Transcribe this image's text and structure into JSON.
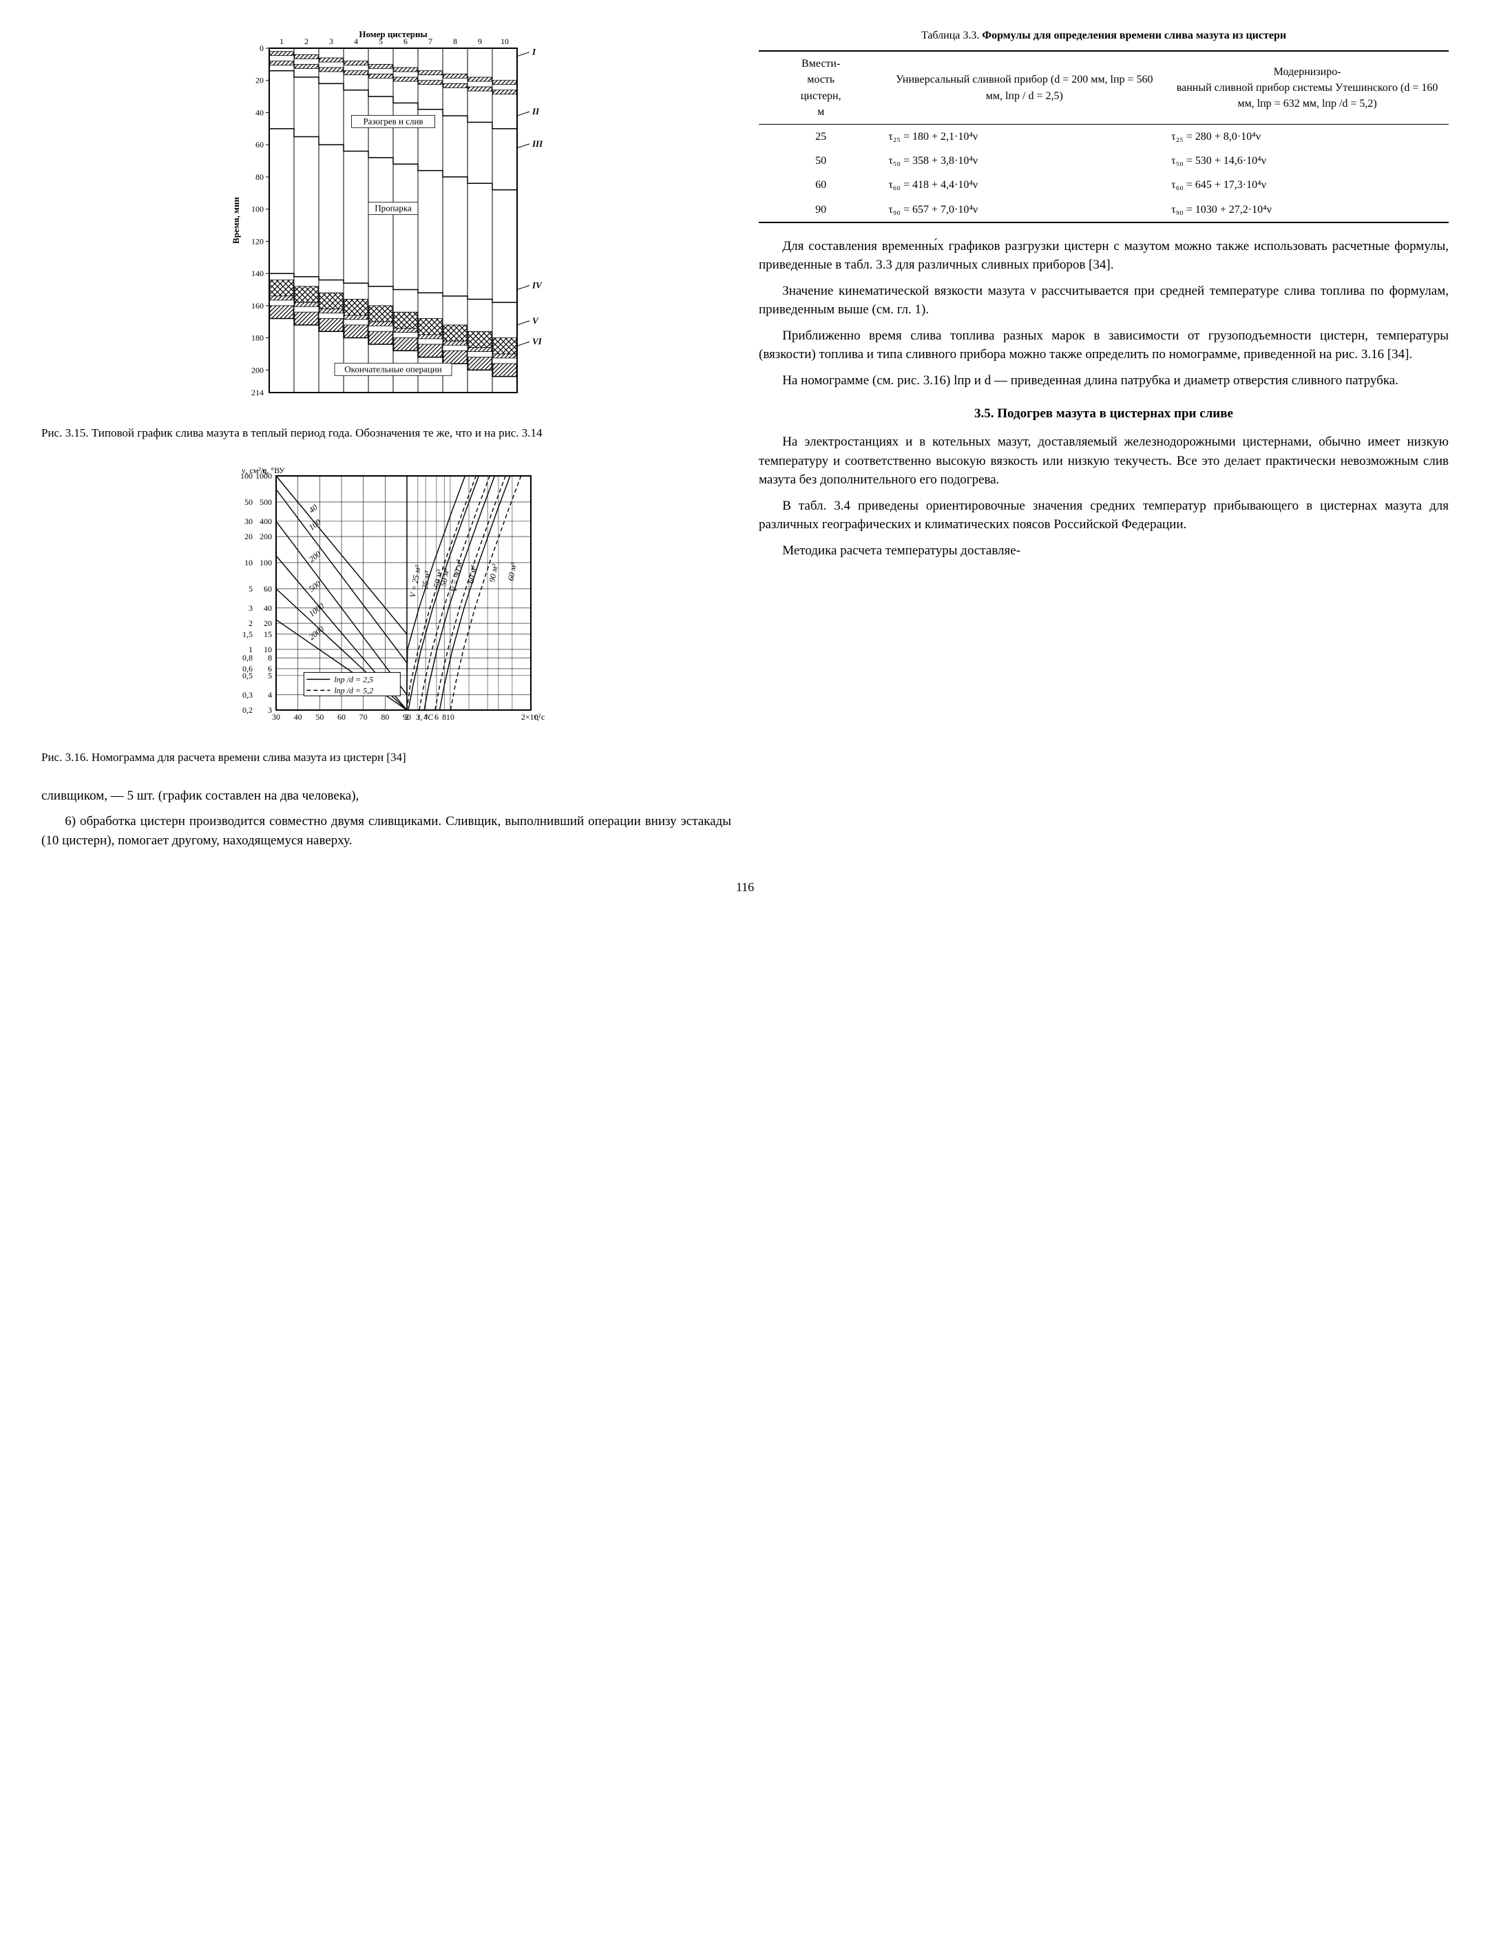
{
  "page_number": "116",
  "chart315": {
    "type": "stacked-bar-schedule",
    "top_title": "Номер цистерны",
    "y_label": "Время, мин",
    "y_ticks": [
      0,
      20,
      40,
      60,
      80,
      100,
      120,
      140,
      160,
      180,
      200
    ],
    "y_bottom": 214,
    "x_ticks": [
      1,
      2,
      3,
      4,
      5,
      6,
      7,
      8,
      9,
      10
    ],
    "roman_labels": [
      "I",
      "II",
      "III",
      "IV",
      "V",
      "VI"
    ],
    "roman_y": [
      5,
      42,
      62,
      150,
      172,
      185
    ],
    "bands": [
      {
        "label": "Разогрев и слив",
        "y_center": 46
      },
      {
        "label": "Пропарка",
        "y_center": 100
      },
      {
        "label": "Окончательные операции",
        "y_center": 200
      }
    ],
    "line_color": "#000000",
    "hatch_height": 6,
    "bar_schedule": [
      {
        "x": 1,
        "top1": 2,
        "top2": 8,
        "thaw_end": 14,
        "steam_start": 50,
        "steam_end": 140,
        "final1": 144,
        "final2": 154,
        "final3": 160,
        "final4": 168
      },
      {
        "x": 2,
        "top1": 4,
        "top2": 10,
        "thaw_end": 18,
        "steam_start": 55,
        "steam_end": 142,
        "final1": 148,
        "final2": 158,
        "final3": 164,
        "final4": 172
      },
      {
        "x": 3,
        "top1": 6,
        "top2": 12,
        "thaw_end": 22,
        "steam_start": 60,
        "steam_end": 144,
        "final1": 152,
        "final2": 162,
        "final3": 168,
        "final4": 176
      },
      {
        "x": 4,
        "top1": 8,
        "top2": 14,
        "thaw_end": 26,
        "steam_start": 64,
        "steam_end": 146,
        "final1": 156,
        "final2": 166,
        "final3": 172,
        "final4": 180
      },
      {
        "x": 5,
        "top1": 10,
        "top2": 16,
        "thaw_end": 30,
        "steam_start": 68,
        "steam_end": 148,
        "final1": 160,
        "final2": 170,
        "final3": 176,
        "final4": 184
      },
      {
        "x": 6,
        "top1": 12,
        "top2": 18,
        "thaw_end": 34,
        "steam_start": 72,
        "steam_end": 150,
        "final1": 164,
        "final2": 174,
        "final3": 180,
        "final4": 188
      },
      {
        "x": 7,
        "top1": 14,
        "top2": 20,
        "thaw_end": 38,
        "steam_start": 76,
        "steam_end": 152,
        "final1": 168,
        "final2": 178,
        "final3": 184,
        "final4": 192
      },
      {
        "x": 8,
        "top1": 16,
        "top2": 22,
        "thaw_end": 42,
        "steam_start": 80,
        "steam_end": 154,
        "final1": 172,
        "final2": 182,
        "final3": 188,
        "final4": 196
      },
      {
        "x": 9,
        "top1": 18,
        "top2": 24,
        "thaw_end": 46,
        "steam_start": 84,
        "steam_end": 156,
        "final1": 176,
        "final2": 186,
        "final3": 192,
        "final4": 200
      },
      {
        "x": 10,
        "top1": 20,
        "top2": 26,
        "thaw_end": 50,
        "steam_start": 88,
        "steam_end": 158,
        "final1": 180,
        "final2": 190,
        "final3": 196,
        "final4": 204
      }
    ],
    "caption": "Рис. 3.15. Типовой график слива мазута в теплый период года. Обозначения те же, что и на рис. 3.14"
  },
  "chart316": {
    "type": "nomogram",
    "left_axis1_label": "ν, см²/с",
    "left_axis2_label": "η, °ВУ",
    "right_axis_label": "τ, с",
    "bottom_axis_label": "t, °С",
    "left1_ticks": [
      100,
      50,
      30,
      20,
      10,
      5,
      3,
      2,
      1.5,
      1.0,
      0.8,
      0.6,
      0.5,
      0.3,
      0.2
    ],
    "left2_ticks": [
      "1000",
      "500",
      "400",
      "200",
      "100",
      "60",
      "40",
      "20",
      "15",
      "10",
      "8",
      "6",
      "5",
      "4",
      "3"
    ],
    "bottom_ticks": [
      30,
      40,
      50,
      60,
      70,
      80,
      90
    ],
    "right_ticks": [
      "2",
      "3",
      "4",
      "6",
      "8",
      "10",
      "2×10²"
    ],
    "diag_labels": [
      "40",
      "100",
      "200",
      "500",
      "1000",
      "2000"
    ],
    "v_labels": [
      "V = 25 м³",
      "25 м³",
      "50 м³",
      "50 м³",
      "V = 90 м³",
      "60 м³",
      "90 м³",
      "60 м³"
    ],
    "legend": [
      "lпр /d = 2,5",
      "lпр /d = 5,2"
    ],
    "caption": "Рис. 3.16. Номограмма для расчета времени слива мазута из цистерн [34]"
  },
  "table": {
    "title_n": "Таблица 3.3. ",
    "title_b": "Формулы для определения времени слива мазута из цистерн",
    "headers": {
      "c1": "Вмести-\nмость\nцистерн,\nм",
      "c2": "Универсальный сливной прибор (d = 200 мм, lпр = 560 мм, lпр / d = 2,5)",
      "c3": "Модернизиро-\nванный сливной прибор системы Утешинского (d = 160 мм, lпр = 632 мм, lпр /d = 5,2)"
    },
    "rows": [
      {
        "cap": "25",
        "f1": "τ₂₅ = 180 + 2,1·10⁴ν",
        "f2": "τ₂₅ = 280 + 8,0·10⁴ν"
      },
      {
        "cap": "50",
        "f1": "τ₅₀ = 358 + 3,8·10⁴ν",
        "f2": "τ₅₀ = 530 + 14,6·10⁴ν"
      },
      {
        "cap": "60",
        "f1": "τ₆₀ = 418 + 4,4·10⁴ν",
        "f2": "τ₆₀ = 645 + 17,3·10⁴ν"
      },
      {
        "cap": "90",
        "f1": "τ₉₀ = 657 + 7,0·10⁴ν",
        "f2": "τ₉₀ = 1030 + 27,2·10⁴ν"
      }
    ]
  },
  "left_text": {
    "p1": "сливщиком, — 5 шт. (график составлен на два человека),",
    "p2": "6) обработка цистерн производится совместно двумя сливщиками. Сливщик, выполнивший операции внизу эстакады (10 цистерн), помогает другому, находящемуся наверху."
  },
  "right_text": {
    "p1": "Для составления временны́х графиков разгрузки цистерн с мазутом можно также использовать расчетные формулы, приведенные в табл. 3.3 для различных сливных приборов [34].",
    "p2": "Значение кинематической вязкости мазута ν рассчитывается при средней температуре слива топлива по формулам, приведенным выше (см. гл. 1).",
    "p3": "Приближенно время слива топлива разных марок в зависимости от грузоподъемности цистерн, температуры (вязкости) топлива и типа сливного прибора можно также определить по номограмме, приведенной на рис. 3.16 [34].",
    "p4": "На номограмме (см. рис. 3.16) lпр и d — приведенная длина патрубка и диаметр отверстия сливного патрубка.",
    "hdr": "3.5. Подогрев мазута в цистернах при сливе",
    "p5": "На электростанциях и в котельных мазут, доставляемый железнодорожными цистернами, обычно имеет низкую температуру и соответственно высокую вязкость или низкую текучесть. Все это делает практически невозможным слив мазута без дополнительного его подогрева.",
    "p6": "В табл. 3.4 приведены ориентировочные значения средних температур прибывающего в цистернах мазута для различных географических и климатических поясов Российской Федерации.",
    "p7": "Методика расчета температуры доставляе-"
  }
}
